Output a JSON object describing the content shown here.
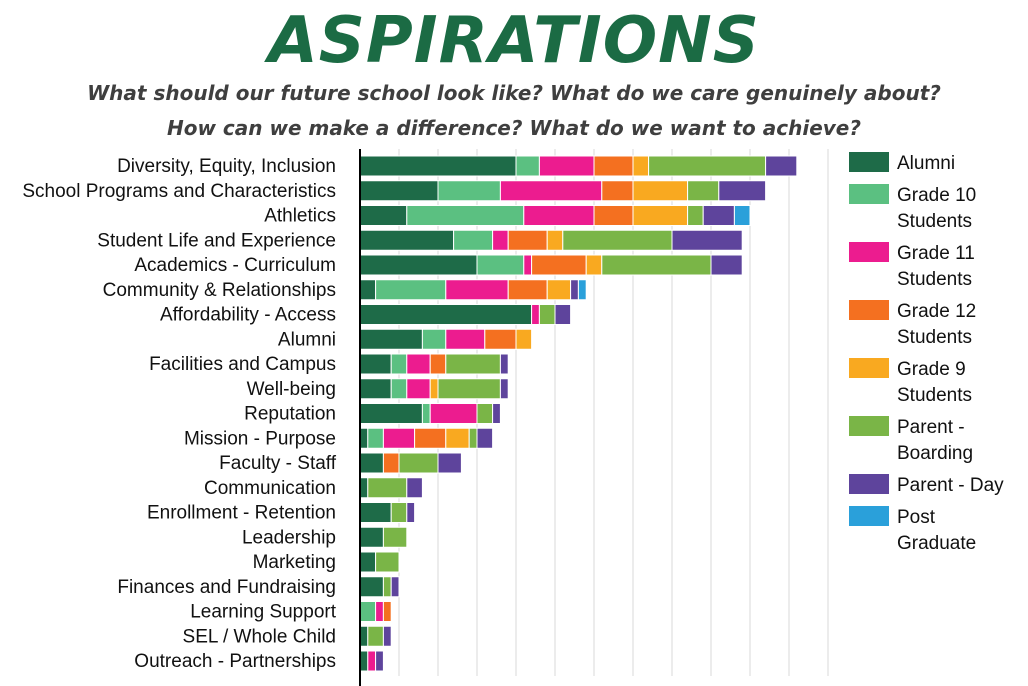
{
  "header": {
    "title": "ASPIRATIONS",
    "subtitle_line1": "What should our future school look like? What do we care genuinely about?",
    "subtitle_line2": "How can we make a difference? What do we want to achieve?"
  },
  "chart_data": {
    "type": "bar",
    "orientation": "horizontal",
    "stacked": true,
    "title": "ASPIRATIONS",
    "grid": true,
    "legend_position": "right",
    "categories": [
      "Diversity, Equity, Inclusion",
      "School Programs and Characteristics",
      "Athletics",
      "Student Life and Experience",
      "Academics - Curriculum",
      "Community & Relationships",
      "Affordability - Access",
      "Alumni",
      "Facilities and Campus",
      "Well-being",
      "Reputation",
      "Mission - Purpose",
      "Faculty - Staff",
      "Communication",
      "Enrollment - Retention",
      "Leadership",
      "Marketing",
      "Finances and Fundraising",
      "Learning Support",
      "SEL / Whole Child",
      "Outreach - Partnerships"
    ],
    "xlim": [
      0,
      120
    ],
    "series": [
      {
        "name": "Alumni",
        "color": "#1e6b48",
        "values": [
          40,
          20,
          12,
          24,
          30,
          4,
          44,
          16,
          8,
          8,
          16,
          2,
          6,
          2,
          8,
          6,
          4,
          6,
          0,
          2,
          2
        ]
      },
      {
        "name": "Grade 10 Students",
        "color": "#5bc081",
        "values": [
          6,
          16,
          30,
          10,
          12,
          18,
          0,
          6,
          4,
          4,
          2,
          4,
          0,
          0,
          0,
          0,
          0,
          0,
          4,
          0,
          0
        ]
      },
      {
        "name": "Grade 11 Students",
        "color": "#ec1c8f",
        "values": [
          14,
          26,
          18,
          4,
          2,
          16,
          2,
          10,
          6,
          6,
          12,
          8,
          0,
          0,
          0,
          0,
          0,
          0,
          2,
          0,
          2
        ]
      },
      {
        "name": "Grade 12 Students",
        "color": "#f47020",
        "values": [
          10,
          8,
          10,
          10,
          14,
          10,
          0,
          8,
          4,
          0,
          0,
          8,
          4,
          0,
          0,
          0,
          0,
          0,
          2,
          0,
          0
        ]
      },
      {
        "name": "Grade 9 Students",
        "color": "#f9a920",
        "values": [
          4,
          14,
          14,
          4,
          4,
          6,
          0,
          4,
          0,
          2,
          0,
          6,
          0,
          0,
          0,
          0,
          0,
          0,
          0,
          0,
          0
        ]
      },
      {
        "name": "Parent - Boarding",
        "color": "#7ab547",
        "values": [
          30,
          8,
          4,
          28,
          28,
          0,
          4,
          0,
          14,
          16,
          4,
          2,
          10,
          10,
          4,
          6,
          6,
          2,
          0,
          4,
          0
        ]
      },
      {
        "name": "Parent - Day",
        "color": "#5e449c",
        "values": [
          8,
          12,
          8,
          18,
          8,
          2,
          4,
          0,
          2,
          2,
          2,
          4,
          6,
          4,
          2,
          0,
          0,
          2,
          0,
          2,
          2
        ]
      },
      {
        "name": "Post Graduate",
        "color": "#2aa0da",
        "values": [
          0,
          0,
          4,
          0,
          0,
          2,
          0,
          0,
          0,
          0,
          0,
          0,
          0,
          0,
          0,
          0,
          0,
          0,
          0,
          0,
          0
        ]
      }
    ],
    "legend": [
      {
        "line1": "Alumni",
        "line2": ""
      },
      {
        "line1": "Grade 10",
        "line2": "Students"
      },
      {
        "line1": "Grade 11",
        "line2": "Students"
      },
      {
        "line1": "Grade 12",
        "line2": "Students"
      },
      {
        "line1": "Grade 9",
        "line2": "Students"
      },
      {
        "line1": "Parent -",
        "line2": "Boarding"
      },
      {
        "line1": "Parent - Day",
        "line2": ""
      },
      {
        "line1": "Post",
        "line2": "Graduate"
      }
    ]
  }
}
